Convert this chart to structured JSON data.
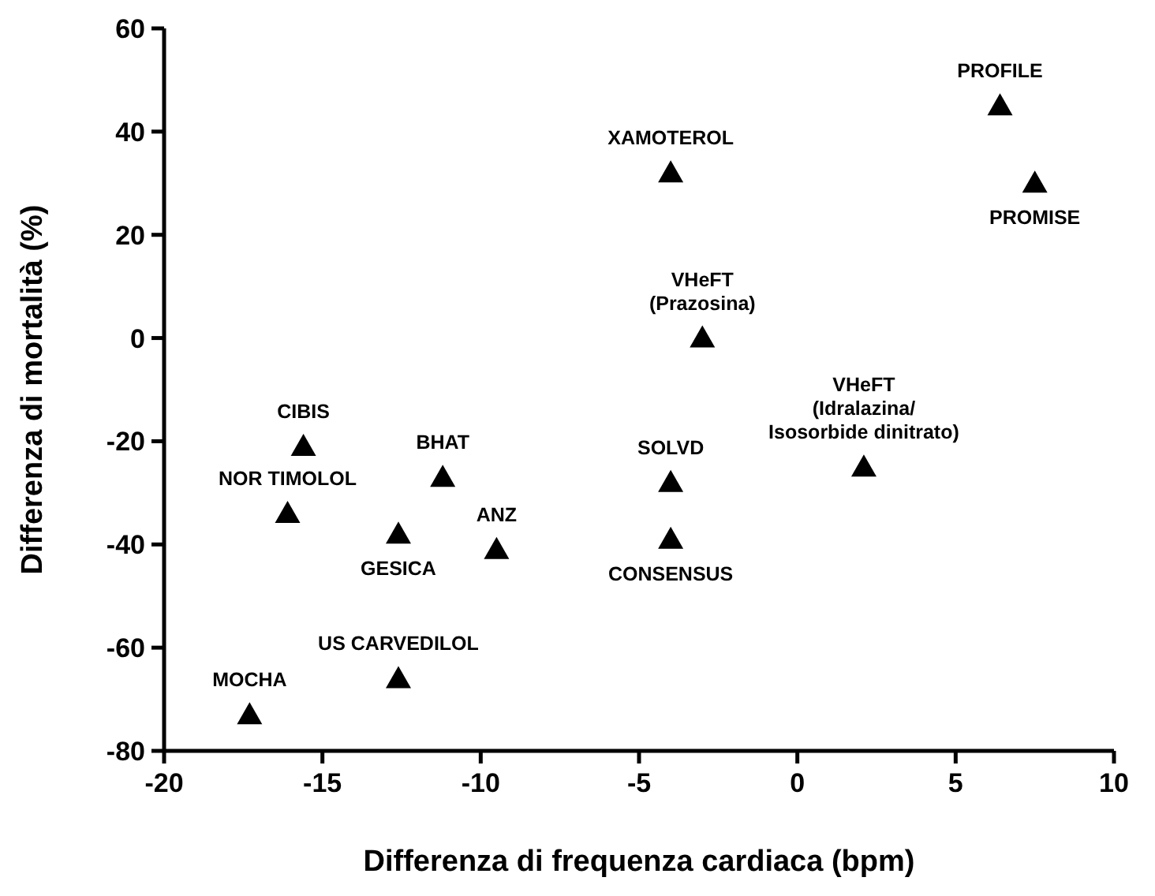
{
  "chart_data": {
    "type": "scatter",
    "xlabel": "Differenza di frequenza cardiaca (bpm)",
    "ylabel": "Differenza di mortalità (%)",
    "x": [
      6.4,
      7.5,
      -4,
      -3,
      2.1,
      -15.6,
      -16.1,
      -11.2,
      -12.6,
      -9.5,
      -4,
      -4,
      -12.6,
      -17.3
    ],
    "values": [
      45,
      30,
      32,
      0,
      -25,
      -21,
      -34,
      -27,
      -38,
      -41,
      -28,
      -39,
      -66,
      -73
    ],
    "color": "#000000",
    "marker": "triangle",
    "grid": false,
    "xlim": [
      -20,
      10
    ],
    "xticks": [
      -20,
      -15,
      -10,
      -5,
      0,
      5,
      10
    ],
    "ylim": [
      -80,
      60
    ],
    "yticks": [
      -80,
      -60,
      -40,
      -20,
      0,
      20,
      40,
      60
    ],
    "annotations": [
      {
        "text": "PROFILE",
        "x": 6.4,
        "y": 45
      },
      {
        "text": "PROMISE",
        "x": 7.5,
        "y": 30
      },
      {
        "text": "XAMOTEROL",
        "x": -4,
        "y": 32
      },
      {
        "text": "VHeFT\n(Prazosina)",
        "x": -3,
        "y": 0
      },
      {
        "text": "VHeFT\n(Idralazina/\nIsosorbide dinitrato)",
        "x": 2.1,
        "y": -25
      },
      {
        "text": "CIBIS",
        "x": -15.6,
        "y": -21
      },
      {
        "text": "NOR TIMOLOL",
        "x": -16.1,
        "y": -34
      },
      {
        "text": "BHAT",
        "x": -11.2,
        "y": -27
      },
      {
        "text": "GESICA",
        "x": -12.6,
        "y": -38
      },
      {
        "text": "ANZ",
        "x": -9.5,
        "y": -41
      },
      {
        "text": "SOLVD",
        "x": -4,
        "y": -28
      },
      {
        "text": "CONSENSUS",
        "x": -4,
        "y": -39
      },
      {
        "text": "US CARVEDILOL",
        "x": -12.6,
        "y": -66
      },
      {
        "text": "MOCHA",
        "x": -17.3,
        "y": -73
      }
    ]
  }
}
